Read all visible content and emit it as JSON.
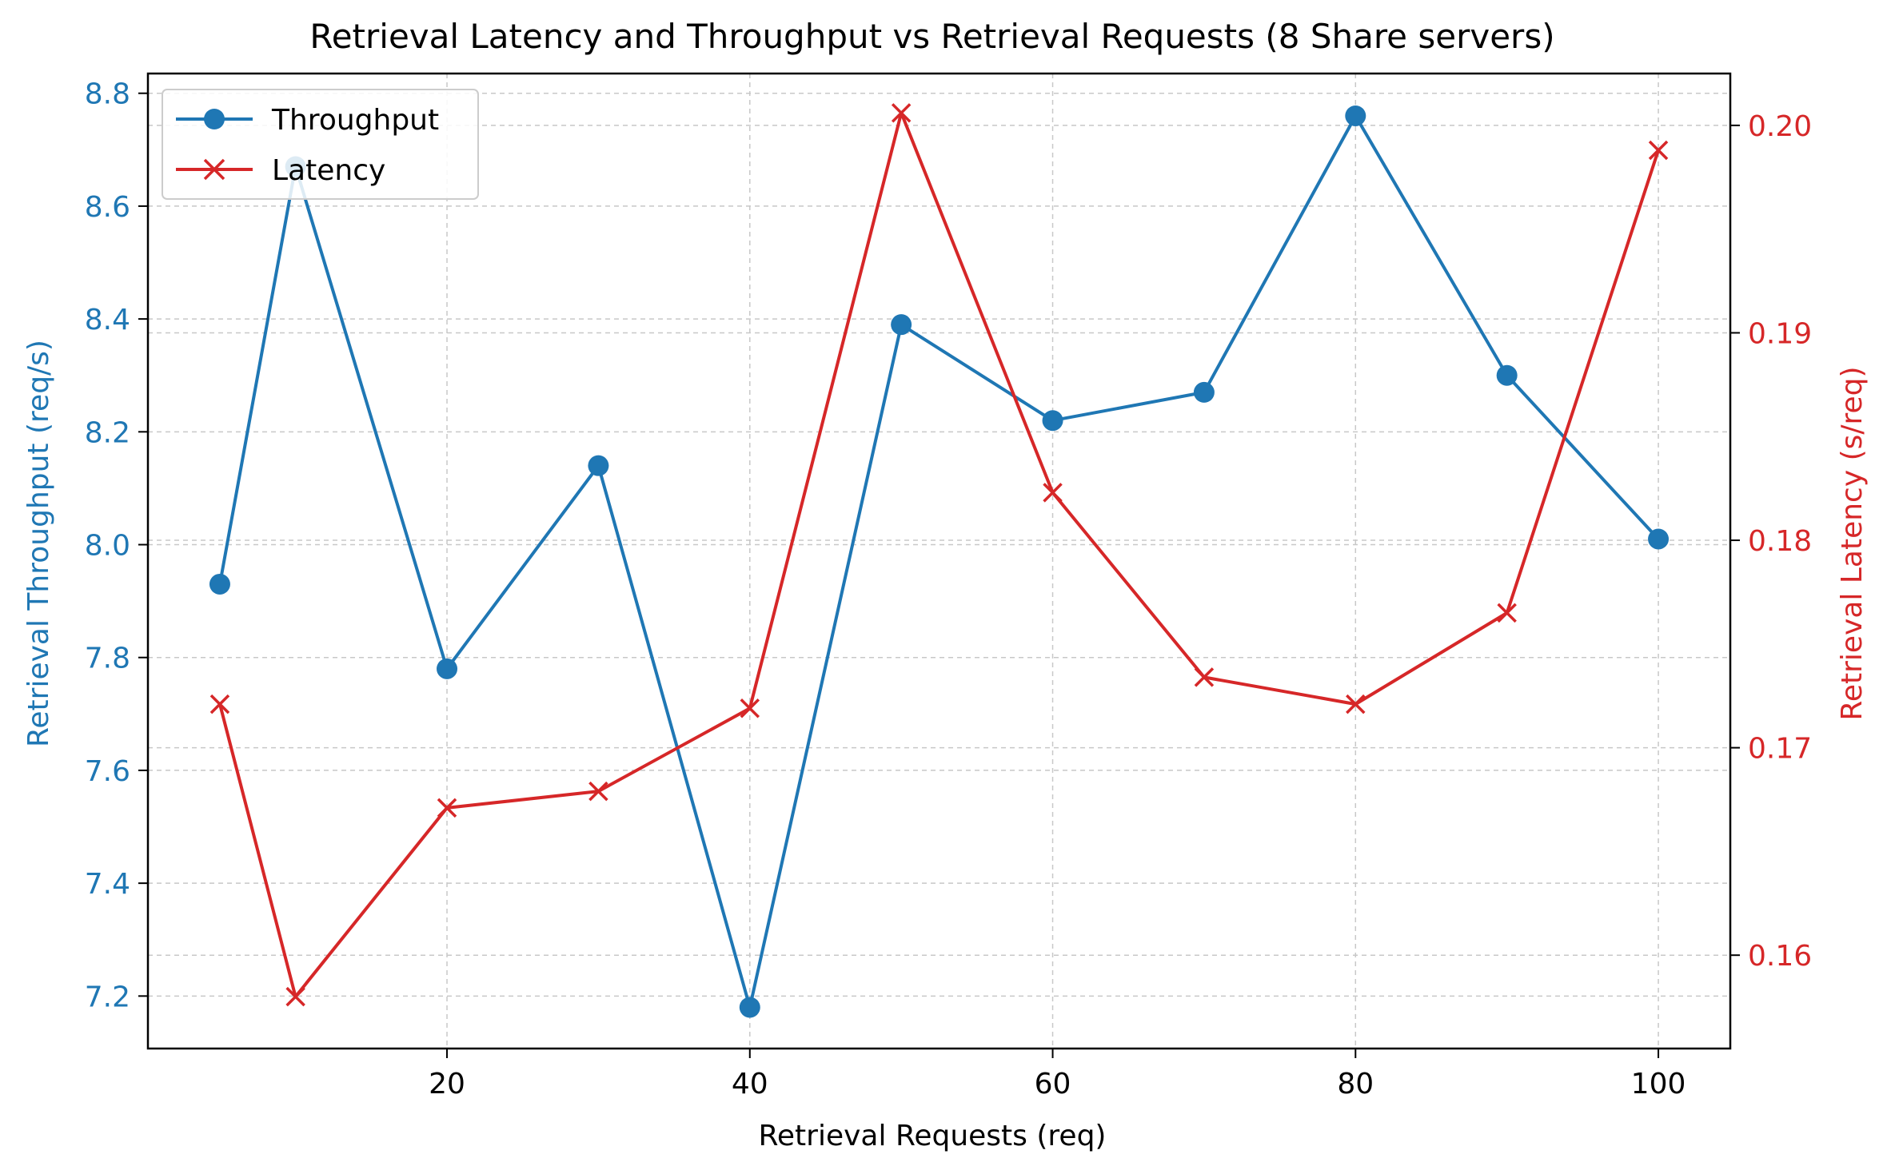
{
  "chart_data": {
    "type": "line",
    "title": "Retrieval Latency and Throughput vs Retrieval Requests (8 Share servers)",
    "xlabel": "Retrieval Requests (req)",
    "ylabel_left": "Retrieval Throughput (req/s)",
    "ylabel_right": "Retrieval Latency (s/req)",
    "x": [
      5,
      10,
      20,
      30,
      40,
      50,
      60,
      70,
      80,
      90,
      100
    ],
    "xlim": [
      0.25,
      104.75
    ],
    "x_ticks": [
      20,
      40,
      60,
      80,
      100
    ],
    "ylim_left": [
      7.107,
      8.835
    ],
    "ylim_right": [
      0.1555,
      0.2025
    ],
    "y_ticks_left": [
      "7.2",
      "7.4",
      "7.6",
      "7.8",
      "8.0",
      "8.2",
      "8.4",
      "8.6",
      "8.8"
    ],
    "y_ticks_right": [
      "0.16",
      "0.17",
      "0.18",
      "0.19",
      "0.20"
    ],
    "grid": true,
    "legend_position": "top-left",
    "series": [
      {
        "name": "Throughput",
        "axis": "left",
        "marker": "circle",
        "color": "#1f77b4",
        "values": [
          7.93,
          8.67,
          7.78,
          8.14,
          7.18,
          8.39,
          8.22,
          8.27,
          8.76,
          8.3,
          8.01
        ]
      },
      {
        "name": "Latency",
        "axis": "right",
        "marker": "x",
        "color": "#d62728",
        "values": [
          0.1721,
          0.158,
          0.1671,
          0.1679,
          0.1719,
          0.2006,
          0.1823,
          0.1734,
          0.1721,
          0.1765,
          0.1988
        ]
      }
    ]
  },
  "colors": {
    "left_axis": "#1f77b4",
    "right_axis": "#d62728",
    "grid": "#c8c8c8",
    "frame": "#000000"
  }
}
